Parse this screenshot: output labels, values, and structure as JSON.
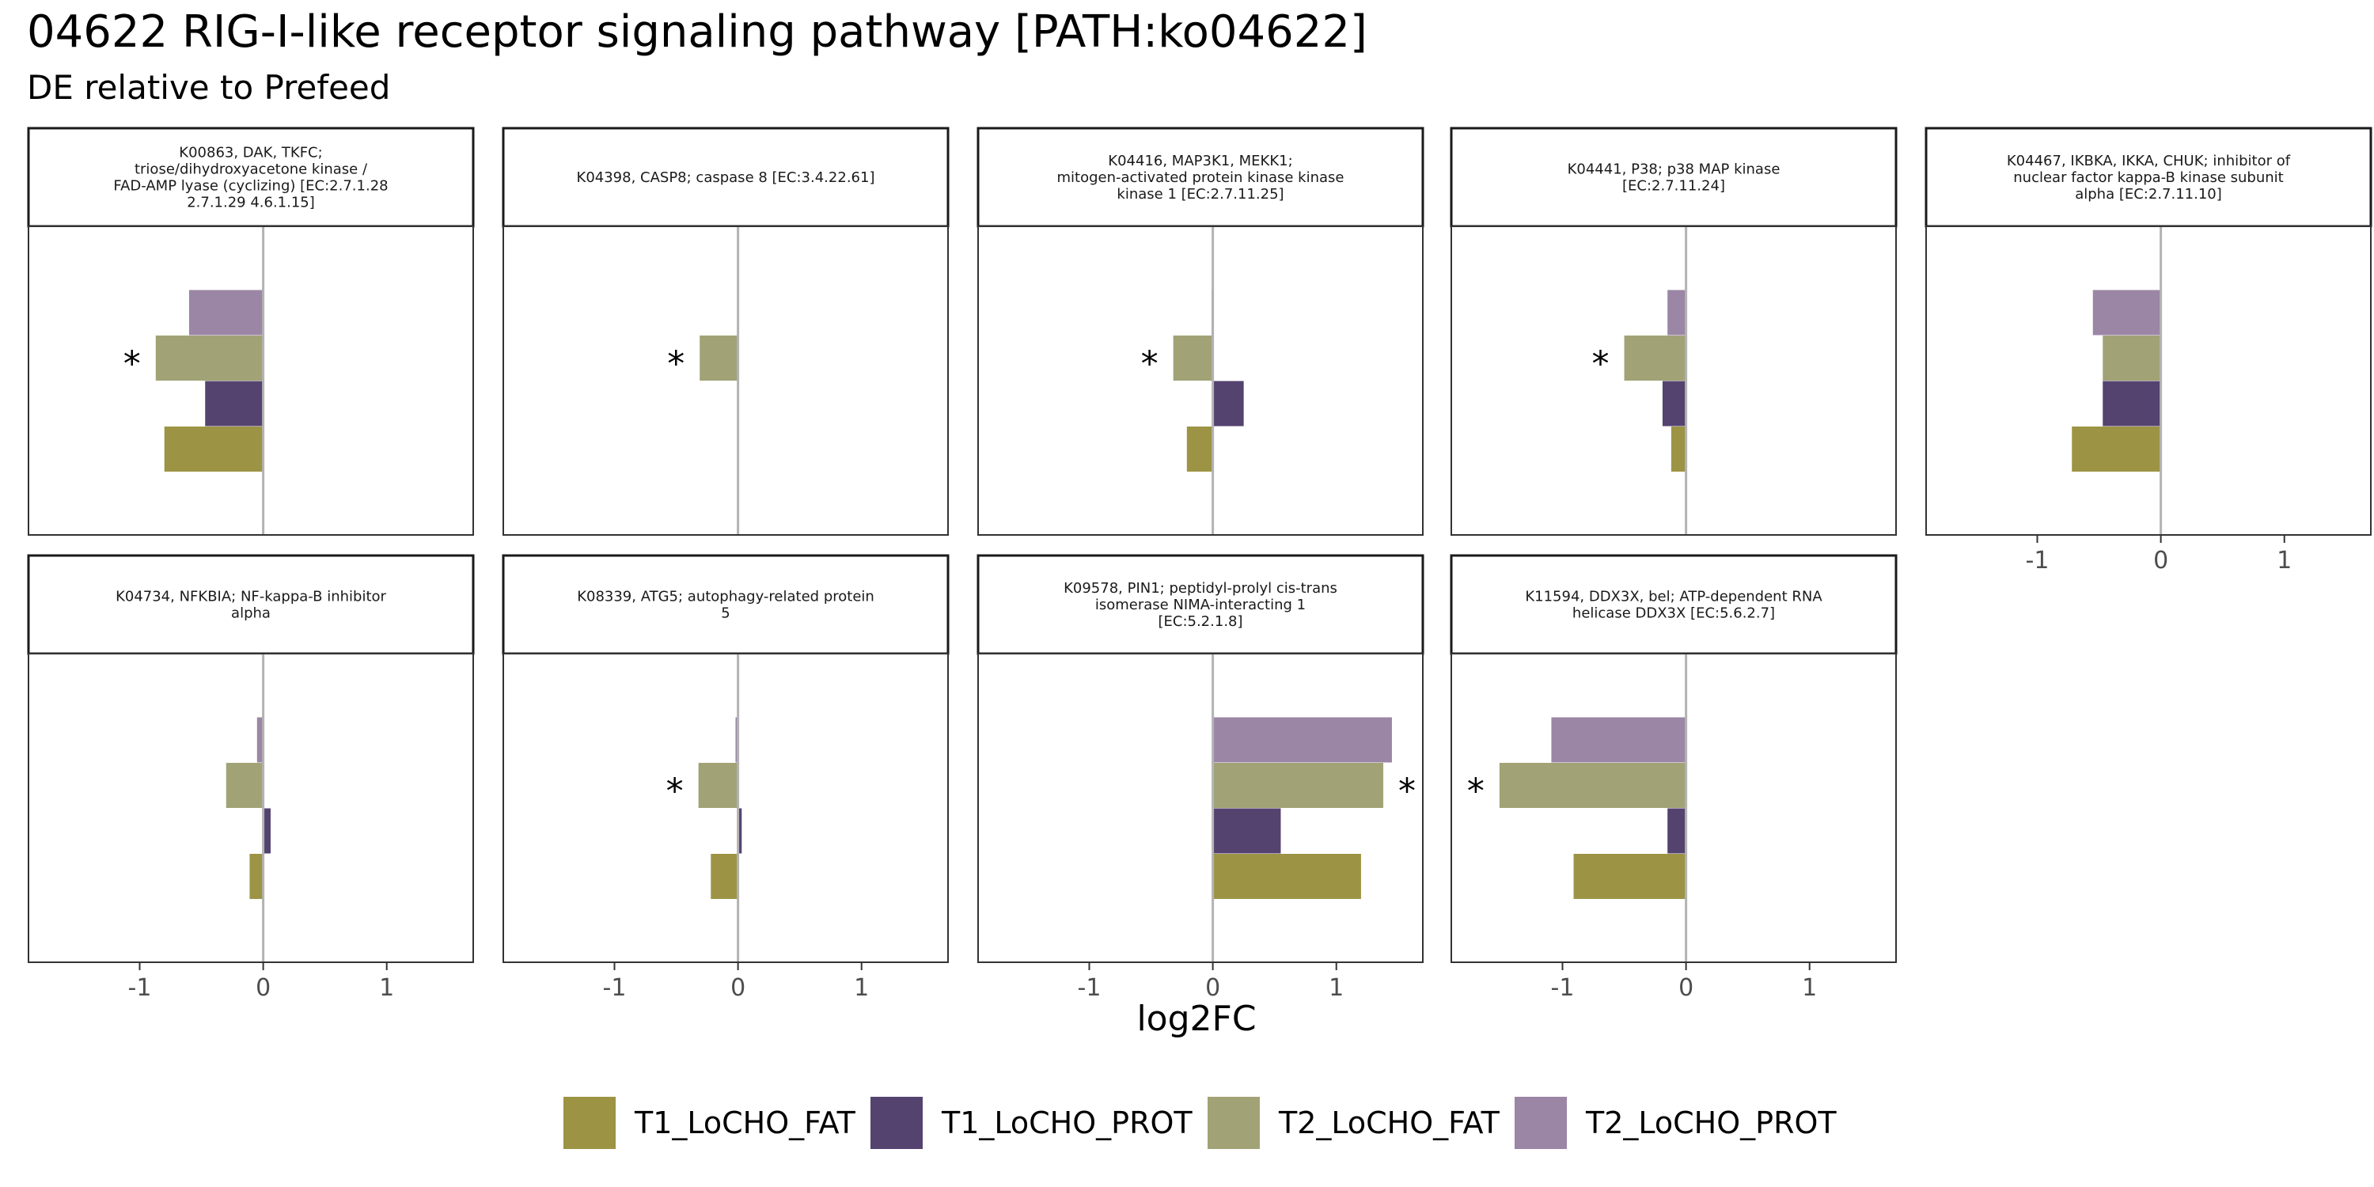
{
  "header": {
    "title": "04622 RIG-I-like receptor signaling pathway [PATH:ko04622]",
    "subtitle": "DE relative to Prefeed"
  },
  "chart_data": {
    "type": "bar",
    "orientation": "horizontal",
    "xlabel": "log2FC",
    "xlim": [
      -1.9,
      1.7
    ],
    "xticks": [
      -1,
      0,
      1
    ],
    "xtick_labels": [
      "-1",
      "0",
      "1"
    ],
    "significance_marker": "*",
    "legend_position": "bottom",
    "series": [
      {
        "name": "T1_LoCHO_FAT",
        "color": "#9c9444"
      },
      {
        "name": "T1_LoCHO_PROT",
        "color": "#54436f"
      },
      {
        "name": "T2_LoCHO_FAT",
        "color": "#a1a376"
      },
      {
        "name": "T2_LoCHO_PROT",
        "color": "#9b86a5"
      }
    ],
    "panels": [
      {
        "label": [
          "K00863, DAK, TKFC;",
          "triose/dihydroxyacetone kinase /",
          "FAD-AMP lyase (cyclizing) [EC:2.7.1.28",
          "2.7.1.29 4.6.1.15]"
        ],
        "values": {
          "T1_LoCHO_FAT": -0.8,
          "T1_LoCHO_PROT": -0.47,
          "T2_LoCHO_FAT": -0.87,
          "T2_LoCHO_PROT": -0.6
        },
        "significant": [
          "T2_LoCHO_FAT"
        ]
      },
      {
        "label": [
          "K04398, CASP8; caspase 8 [EC:3.4.22.61]"
        ],
        "values": {
          "T1_LoCHO_FAT": 0,
          "T1_LoCHO_PROT": 0,
          "T2_LoCHO_FAT": -0.31,
          "T2_LoCHO_PROT": 0
        },
        "significant": [
          "T2_LoCHO_FAT"
        ]
      },
      {
        "label": [
          "K04416, MAP3K1, MEKK1;",
          "mitogen-activated protein kinase kinase",
          "kinase 1 [EC:2.7.11.25]"
        ],
        "values": {
          "T1_LoCHO_FAT": -0.21,
          "T1_LoCHO_PROT": 0.25,
          "T2_LoCHO_FAT": -0.32,
          "T2_LoCHO_PROT": -0.01
        },
        "significant": [
          "T2_LoCHO_FAT"
        ]
      },
      {
        "label": [
          "K04441, P38; p38 MAP kinase",
          "[EC:2.7.11.24]"
        ],
        "values": {
          "T1_LoCHO_FAT": -0.12,
          "T1_LoCHO_PROT": -0.19,
          "T2_LoCHO_FAT": -0.5,
          "T2_LoCHO_PROT": -0.15
        },
        "significant": [
          "T2_LoCHO_FAT"
        ]
      },
      {
        "label": [
          "K04467, IKBKA, IKKA, CHUK; inhibitor of",
          "nuclear factor kappa-B kinase subunit",
          "alpha [EC:2.7.11.10]"
        ],
        "values": {
          "T1_LoCHO_FAT": -0.72,
          "T1_LoCHO_PROT": -0.47,
          "T2_LoCHO_FAT": -0.47,
          "T2_LoCHO_PROT": -0.55
        },
        "significant": []
      },
      {
        "label": [
          "K04734, NFKBIA; NF-kappa-B inhibitor",
          "alpha"
        ],
        "values": {
          "T1_LoCHO_FAT": -0.11,
          "T1_LoCHO_PROT": 0.06,
          "T2_LoCHO_FAT": -0.3,
          "T2_LoCHO_PROT": -0.05
        },
        "significant": []
      },
      {
        "label": [
          "K08339, ATG5; autophagy-related protein",
          "5"
        ],
        "values": {
          "T1_LoCHO_FAT": -0.22,
          "T1_LoCHO_PROT": 0.03,
          "T2_LoCHO_FAT": -0.32,
          "T2_LoCHO_PROT": -0.02
        },
        "significant": [
          "T2_LoCHO_FAT"
        ]
      },
      {
        "label": [
          "K09578, PIN1; peptidyl-prolyl cis-trans",
          "isomerase NIMA-interacting 1",
          "[EC:5.2.1.8]"
        ],
        "values": {
          "T1_LoCHO_FAT": 1.2,
          "T1_LoCHO_PROT": 0.55,
          "T2_LoCHO_FAT": 1.38,
          "T2_LoCHO_PROT": 1.45
        },
        "significant": [
          "T2_LoCHO_FAT"
        ]
      },
      {
        "label": [
          "K11594, DDX3X, bel; ATP-dependent RNA",
          "helicase DDX3X [EC:5.6.2.7]"
        ],
        "values": {
          "T1_LoCHO_FAT": -0.91,
          "T1_LoCHO_PROT": -0.15,
          "T2_LoCHO_FAT": -1.51,
          "T2_LoCHO_PROT": -1.09
        },
        "significant": [
          "T2_LoCHO_FAT"
        ]
      }
    ]
  }
}
